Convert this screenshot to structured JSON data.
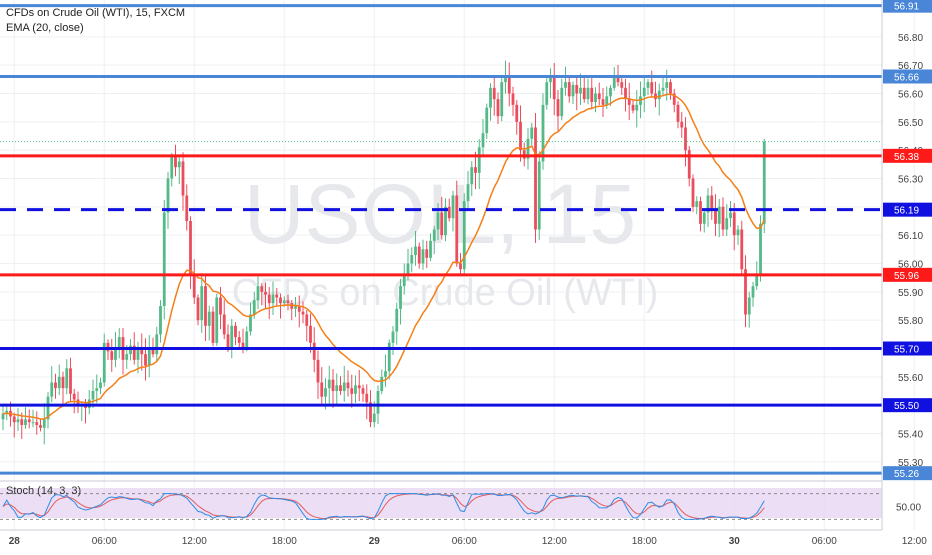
{
  "chart_data": {
    "type": "candlestick",
    "title": "CFDs on Crude Oil (WTI), 15, FXCM",
    "indicator_label": "EMA (20, close)",
    "watermark_symbol": "USOIL, 15",
    "watermark_name": "CFDs on Crude Oil (WTI)",
    "stoch_label": "Stoch (14, 3, 3)",
    "stoch_level_label": "50.00",
    "ylim": [
      55.25,
      56.93
    ],
    "y_ticks": [
      "56.80",
      "56.70",
      "56.60",
      "56.50",
      "56.40",
      "56.30",
      "56.20",
      "56.10",
      "56.00",
      "55.90",
      "55.80",
      "55.70",
      "55.60",
      "55.50",
      "55.40",
      "55.30"
    ],
    "x_ticks": [
      {
        "label": "28",
        "t": 3,
        "bold": true
      },
      {
        "label": "06:00",
        "t": 27
      },
      {
        "label": "12:00",
        "t": 51
      },
      {
        "label": "18:00",
        "t": 75
      },
      {
        "label": "29",
        "t": 99,
        "bold": true
      },
      {
        "label": "06:00",
        "t": 123
      },
      {
        "label": "12:00",
        "t": 147
      },
      {
        "label": "18:00",
        "t": 171
      },
      {
        "label": "30",
        "t": 195,
        "bold": true
      },
      {
        "label": "06:00",
        "t": 219
      },
      {
        "label": "12:00",
        "t": 243
      }
    ],
    "levels": [
      {
        "label": "56.91",
        "value": 56.91,
        "color": "#4a86d8",
        "style": "solid",
        "width": 3
      },
      {
        "label": "56.66",
        "value": 56.66,
        "color": "#4a86d8",
        "style": "solid",
        "width": 3
      },
      {
        "label": "56.38",
        "value": 56.38,
        "color": "#ff1a1a",
        "style": "solid",
        "width": 3
      },
      {
        "label": "56.19",
        "value": 56.19,
        "color": "#1010e0",
        "style": "dashed",
        "width": 3
      },
      {
        "label": "55.96",
        "value": 55.96,
        "color": "#ff1a1a",
        "style": "solid",
        "width": 3
      },
      {
        "label": "55.70",
        "value": 55.7,
        "color": "#1010e0",
        "style": "solid",
        "width": 3
      },
      {
        "label": "55.50",
        "value": 55.5,
        "color": "#1010e0",
        "style": "solid",
        "width": 3
      },
      {
        "label": "55.26",
        "value": 55.26,
        "color": "#4a86d8",
        "style": "solid",
        "width": 3
      }
    ],
    "current_price": 56.43,
    "up_color": "#53b987",
    "down_color": "#eb4d5c",
    "ema_color": "#f57f17",
    "closes": [
      55.47,
      55.48,
      55.46,
      55.44,
      55.45,
      55.43,
      55.45,
      55.44,
      55.44,
      55.43,
      55.42,
      55.45,
      55.53,
      55.58,
      55.56,
      55.6,
      55.56,
      55.63,
      55.54,
      55.52,
      55.5,
      55.5,
      55.49,
      55.52,
      55.55,
      55.56,
      55.58,
      55.72,
      55.69,
      55.66,
      55.7,
      55.74,
      55.66,
      55.68,
      55.71,
      55.66,
      55.7,
      55.68,
      55.64,
      55.7,
      55.68,
      55.75,
      55.85,
      56.18,
      56.3,
      56.38,
      56.34,
      56.36,
      56.24,
      56.15,
      55.96,
      55.88,
      55.8,
      55.92,
      55.78,
      55.83,
      55.72,
      55.88,
      55.82,
      55.75,
      55.7,
      55.78,
      55.74,
      55.72,
      55.7,
      55.76,
      55.82,
      55.87,
      55.92,
      55.9,
      55.89,
      55.86,
      55.89,
      55.88,
      55.86,
      55.87,
      55.86,
      55.84,
      55.85,
      55.83,
      55.82,
      55.78,
      55.72,
      55.66,
      55.58,
      55.53,
      55.56,
      55.59,
      55.55,
      55.57,
      55.55,
      55.58,
      55.56,
      55.54,
      55.57,
      55.56,
      55.54,
      55.51,
      55.44,
      55.47,
      55.55,
      55.6,
      55.62,
      55.72,
      55.76,
      55.84,
      55.92,
      55.96,
      56.0,
      56.03,
      56.06,
      56.0,
      56.05,
      56.02,
      56.08,
      56.12,
      56.18,
      56.1,
      56.2,
      56.16,
      56.24,
      56.0,
      55.98,
      56.22,
      56.28,
      56.34,
      56.32,
      56.41,
      56.46,
      56.55,
      56.62,
      56.58,
      56.52,
      56.64,
      56.66,
      56.6,
      56.56,
      56.5,
      56.4,
      56.37,
      56.44,
      56.48,
      56.12,
      56.36,
      56.56,
      56.64,
      56.66,
      56.58,
      56.52,
      56.62,
      56.64,
      56.59,
      56.63,
      56.6,
      56.62,
      56.58,
      56.62,
      56.57,
      56.6,
      56.58,
      56.56,
      56.59,
      56.62,
      56.66,
      56.64,
      56.62,
      56.58,
      56.56,
      56.54,
      56.56,
      56.59,
      56.62,
      56.64,
      56.6,
      56.58,
      56.61,
      56.62,
      56.64,
      56.6,
      56.56,
      56.5,
      56.48,
      56.4,
      56.3,
      56.2,
      56.22,
      56.14,
      56.18,
      56.24,
      56.19,
      56.14,
      56.2,
      56.12,
      56.16,
      56.18,
      56.1,
      56.12,
      55.98,
      55.82,
      55.88,
      55.92,
      55.96,
      56.14,
      56.43
    ]
  }
}
